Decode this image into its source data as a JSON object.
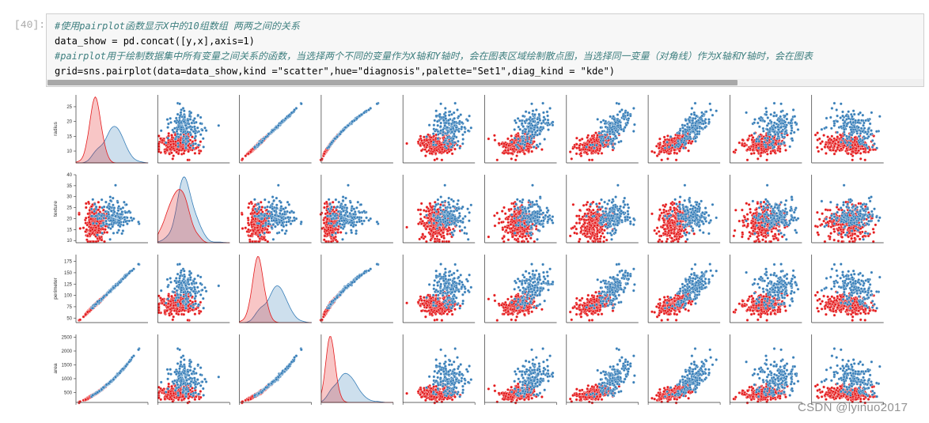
{
  "cell": {
    "prompt": "[40]:",
    "lines": [
      {
        "type": "comment",
        "text": "#使用pairplot函数显示X中的10组数组 两两之间的关系"
      },
      {
        "type": "code",
        "text": "data_show = pd.concat([y,x],axis=1)"
      },
      {
        "type": "comment",
        "text": "#pairplot用于绘制数据集中所有变量之间关系的函数，当选择两个不同的变量作为X轴和Y轴时，会在图表区域绘制散点图，当选择同一变量（对角线）作为X轴和Y轴时，会在图表"
      },
      {
        "type": "code",
        "text": "grid=sns.pairplot(data=data_show,kind =\"scatter\",hue=\"diagnosis\",palette=\"Set1\",diag_kind = \"kde\")"
      }
    ]
  },
  "colors": {
    "malignant": "#e41a1c",
    "benign": "#377eb8"
  },
  "chart_data": {
    "type": "scatter",
    "kind": "pairplot",
    "hue": "diagnosis",
    "palette": "Set1",
    "rows": [
      {
        "name": "radius",
        "ticks": [
          10,
          15,
          20,
          25
        ],
        "range": [
          6,
          29
        ]
      },
      {
        "name": "texture",
        "ticks": [
          10,
          15,
          20,
          25,
          30,
          35,
          40
        ],
        "range": [
          9,
          40
        ]
      },
      {
        "name": "perimeter",
        "ticks": [
          50,
          75,
          100,
          125,
          150,
          175
        ],
        "range": [
          40,
          190
        ]
      },
      {
        "name": "area",
        "ticks": [
          500,
          1000,
          1500,
          2000,
          2500
        ],
        "range": [
          140,
          2600
        ]
      }
    ],
    "columns_visible": 10,
    "series": [
      {
        "color": "#e41a1c",
        "radius_mean": 12.1,
        "texture_mean": 17.9,
        "perimeter_mean": 78,
        "area_mean": 463
      },
      {
        "color": "#377eb8",
        "radius_mean": 17.5,
        "texture_mean": 21.6,
        "perimeter_mean": 115,
        "area_mean": 978
      }
    ]
  },
  "watermark": "CSDN @lyinuo2017"
}
